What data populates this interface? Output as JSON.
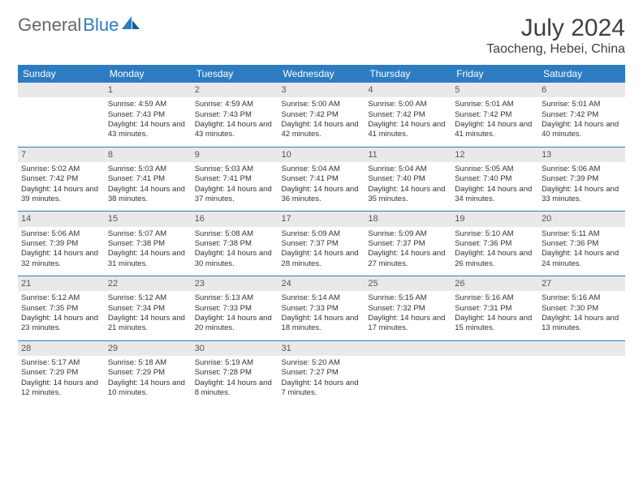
{
  "logo": {
    "general": "General",
    "blue": "Blue"
  },
  "title": "July 2024",
  "location": "Taocheng, Hebei, China",
  "colors": {
    "header_bg": "#2d7cc1",
    "header_text": "#ffffff",
    "daynum_bg": "#e9e9e9",
    "border": "#2d7cc1",
    "page_bg": "#ffffff",
    "text": "#333333"
  },
  "day_headers": [
    "Sunday",
    "Monday",
    "Tuesday",
    "Wednesday",
    "Thursday",
    "Friday",
    "Saturday"
  ],
  "weeks": [
    [
      null,
      {
        "n": "1",
        "sr": "4:59 AM",
        "ss": "7:43 PM",
        "dl": "14 hours and 43 minutes."
      },
      {
        "n": "2",
        "sr": "4:59 AM",
        "ss": "7:43 PM",
        "dl": "14 hours and 43 minutes."
      },
      {
        "n": "3",
        "sr": "5:00 AM",
        "ss": "7:42 PM",
        "dl": "14 hours and 42 minutes."
      },
      {
        "n": "4",
        "sr": "5:00 AM",
        "ss": "7:42 PM",
        "dl": "14 hours and 41 minutes."
      },
      {
        "n": "5",
        "sr": "5:01 AM",
        "ss": "7:42 PM",
        "dl": "14 hours and 41 minutes."
      },
      {
        "n": "6",
        "sr": "5:01 AM",
        "ss": "7:42 PM",
        "dl": "14 hours and 40 minutes."
      }
    ],
    [
      {
        "n": "7",
        "sr": "5:02 AM",
        "ss": "7:42 PM",
        "dl": "14 hours and 39 minutes."
      },
      {
        "n": "8",
        "sr": "5:03 AM",
        "ss": "7:41 PM",
        "dl": "14 hours and 38 minutes."
      },
      {
        "n": "9",
        "sr": "5:03 AM",
        "ss": "7:41 PM",
        "dl": "14 hours and 37 minutes."
      },
      {
        "n": "10",
        "sr": "5:04 AM",
        "ss": "7:41 PM",
        "dl": "14 hours and 36 minutes."
      },
      {
        "n": "11",
        "sr": "5:04 AM",
        "ss": "7:40 PM",
        "dl": "14 hours and 35 minutes."
      },
      {
        "n": "12",
        "sr": "5:05 AM",
        "ss": "7:40 PM",
        "dl": "14 hours and 34 minutes."
      },
      {
        "n": "13",
        "sr": "5:06 AM",
        "ss": "7:39 PM",
        "dl": "14 hours and 33 minutes."
      }
    ],
    [
      {
        "n": "14",
        "sr": "5:06 AM",
        "ss": "7:39 PM",
        "dl": "14 hours and 32 minutes."
      },
      {
        "n": "15",
        "sr": "5:07 AM",
        "ss": "7:38 PM",
        "dl": "14 hours and 31 minutes."
      },
      {
        "n": "16",
        "sr": "5:08 AM",
        "ss": "7:38 PM",
        "dl": "14 hours and 30 minutes."
      },
      {
        "n": "17",
        "sr": "5:09 AM",
        "ss": "7:37 PM",
        "dl": "14 hours and 28 minutes."
      },
      {
        "n": "18",
        "sr": "5:09 AM",
        "ss": "7:37 PM",
        "dl": "14 hours and 27 minutes."
      },
      {
        "n": "19",
        "sr": "5:10 AM",
        "ss": "7:36 PM",
        "dl": "14 hours and 26 minutes."
      },
      {
        "n": "20",
        "sr": "5:11 AM",
        "ss": "7:36 PM",
        "dl": "14 hours and 24 minutes."
      }
    ],
    [
      {
        "n": "21",
        "sr": "5:12 AM",
        "ss": "7:35 PM",
        "dl": "14 hours and 23 minutes."
      },
      {
        "n": "22",
        "sr": "5:12 AM",
        "ss": "7:34 PM",
        "dl": "14 hours and 21 minutes."
      },
      {
        "n": "23",
        "sr": "5:13 AM",
        "ss": "7:33 PM",
        "dl": "14 hours and 20 minutes."
      },
      {
        "n": "24",
        "sr": "5:14 AM",
        "ss": "7:33 PM",
        "dl": "14 hours and 18 minutes."
      },
      {
        "n": "25",
        "sr": "5:15 AM",
        "ss": "7:32 PM",
        "dl": "14 hours and 17 minutes."
      },
      {
        "n": "26",
        "sr": "5:16 AM",
        "ss": "7:31 PM",
        "dl": "14 hours and 15 minutes."
      },
      {
        "n": "27",
        "sr": "5:16 AM",
        "ss": "7:30 PM",
        "dl": "14 hours and 13 minutes."
      }
    ],
    [
      {
        "n": "28",
        "sr": "5:17 AM",
        "ss": "7:29 PM",
        "dl": "14 hours and 12 minutes."
      },
      {
        "n": "29",
        "sr": "5:18 AM",
        "ss": "7:29 PM",
        "dl": "14 hours and 10 minutes."
      },
      {
        "n": "30",
        "sr": "5:19 AM",
        "ss": "7:28 PM",
        "dl": "14 hours and 8 minutes."
      },
      {
        "n": "31",
        "sr": "5:20 AM",
        "ss": "7:27 PM",
        "dl": "14 hours and 7 minutes."
      },
      null,
      null,
      null
    ]
  ],
  "labels": {
    "sunrise": "Sunrise:",
    "sunset": "Sunset:",
    "daylight": "Daylight:"
  }
}
